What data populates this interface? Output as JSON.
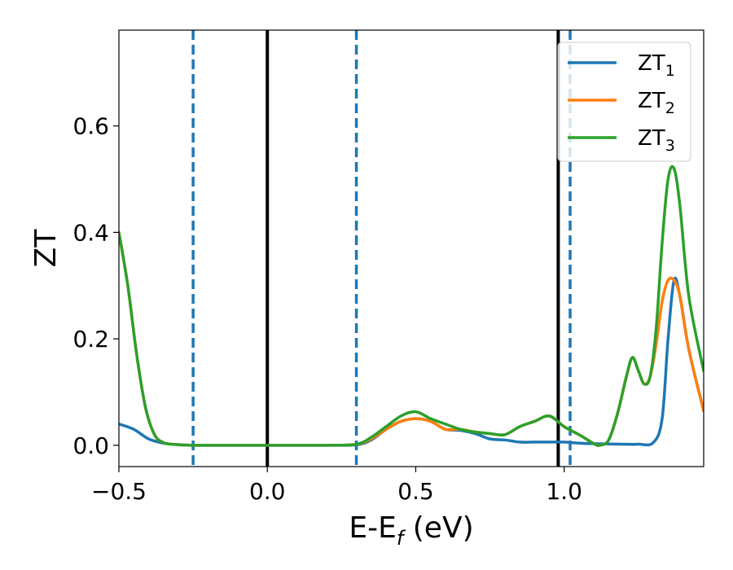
{
  "chart_data": {
    "type": "line",
    "title": "",
    "xlabel": "E-E",
    "xlabel_sub": "f",
    "xlabel_unit": " (eV)",
    "ylabel": "ZT",
    "xlim": [
      -0.5,
      1.47
    ],
    "ylim": [
      -0.04,
      0.78
    ],
    "xticks": [
      -0.5,
      0.0,
      0.5,
      1.0
    ],
    "xtick_labels": [
      "−0.5",
      "0.0",
      "0.5",
      "1.0"
    ],
    "yticks": [
      0.0,
      0.2,
      0.4,
      0.6
    ],
    "ytick_labels": [
      "0.0",
      "0.2",
      "0.4",
      "0.6"
    ],
    "grid": false,
    "legend_position": "top-right",
    "vlines": [
      {
        "x": -0.25,
        "style": "dashed",
        "color": "#1f77b4"
      },
      {
        "x": 0.0,
        "style": "solid",
        "color": "#000000"
      },
      {
        "x": 0.3,
        "style": "dashed",
        "color": "#1f77b4"
      },
      {
        "x": 0.98,
        "style": "solid",
        "color": "#000000"
      },
      {
        "x": 1.02,
        "style": "dashed",
        "color": "#1f77b4"
      }
    ],
    "series": [
      {
        "name": "ZT",
        "name_sub": "1",
        "color": "#1f77b4",
        "x": [
          -0.5,
          -0.45,
          -0.4,
          -0.35,
          -0.3,
          -0.25,
          -0.2,
          0.0,
          0.2,
          0.3,
          0.35,
          0.4,
          0.45,
          0.5,
          0.55,
          0.6,
          0.65,
          0.7,
          0.75,
          0.8,
          0.85,
          0.9,
          0.95,
          1.0,
          1.05,
          1.1,
          1.2,
          1.25,
          1.3,
          1.33,
          1.35,
          1.37,
          1.39,
          1.42,
          1.47
        ],
        "y": [
          0.04,
          0.03,
          0.012,
          0.004,
          0.001,
          0.0,
          0.0,
          0.0,
          0.0,
          0.001,
          0.01,
          0.03,
          0.045,
          0.05,
          0.045,
          0.03,
          0.028,
          0.022,
          0.012,
          0.01,
          0.006,
          0.006,
          0.006,
          0.006,
          0.004,
          0.003,
          0.002,
          0.002,
          0.005,
          0.05,
          0.2,
          0.31,
          0.28,
          0.18,
          0.065
        ]
      },
      {
        "name": "ZT",
        "name_sub": "2",
        "color": "#ff7f0e",
        "x": [
          -0.5,
          -0.47,
          -0.44,
          -0.41,
          -0.38,
          -0.35,
          -0.32,
          -0.29,
          -0.25,
          -0.2,
          0.0,
          0.2,
          0.3,
          0.35,
          0.4,
          0.45,
          0.5,
          0.55,
          0.6,
          0.65,
          0.7,
          0.75,
          0.8,
          0.85,
          0.9,
          0.95,
          1.0,
          1.05,
          1.1,
          1.12,
          1.15,
          1.18,
          1.21,
          1.23,
          1.25,
          1.27,
          1.29,
          1.31,
          1.33,
          1.35,
          1.37,
          1.39,
          1.42,
          1.47
        ],
        "y": [
          0.4,
          0.3,
          0.17,
          0.07,
          0.02,
          0.005,
          0.002,
          0.001,
          0.0,
          0.0,
          0.0,
          0.0,
          0.002,
          0.012,
          0.03,
          0.045,
          0.05,
          0.045,
          0.03,
          0.03,
          0.025,
          0.022,
          0.02,
          0.035,
          0.045,
          0.055,
          0.035,
          0.02,
          0.003,
          0.0,
          0.01,
          0.06,
          0.13,
          0.165,
          0.14,
          0.115,
          0.13,
          0.19,
          0.27,
          0.31,
          0.31,
          0.28,
          0.18,
          0.065
        ]
      },
      {
        "name": "ZT",
        "name_sub": "3",
        "color": "#2ca02c",
        "x": [
          -0.5,
          -0.47,
          -0.44,
          -0.41,
          -0.38,
          -0.35,
          -0.32,
          -0.29,
          -0.25,
          -0.2,
          0.0,
          0.2,
          0.3,
          0.35,
          0.4,
          0.45,
          0.5,
          0.55,
          0.6,
          0.65,
          0.7,
          0.75,
          0.8,
          0.85,
          0.9,
          0.95,
          1.0,
          1.05,
          1.1,
          1.12,
          1.15,
          1.18,
          1.21,
          1.23,
          1.25,
          1.27,
          1.29,
          1.31,
          1.33,
          1.35,
          1.37,
          1.39,
          1.42,
          1.47
        ],
        "y": [
          0.4,
          0.3,
          0.17,
          0.07,
          0.02,
          0.005,
          0.002,
          0.001,
          0.0,
          0.0,
          0.0,
          0.0,
          0.002,
          0.015,
          0.035,
          0.055,
          0.063,
          0.05,
          0.04,
          0.03,
          0.025,
          0.022,
          0.02,
          0.035,
          0.045,
          0.055,
          0.035,
          0.02,
          0.003,
          0.0,
          0.01,
          0.06,
          0.13,
          0.165,
          0.14,
          0.115,
          0.13,
          0.22,
          0.38,
          0.5,
          0.52,
          0.45,
          0.28,
          0.14
        ]
      }
    ]
  }
}
